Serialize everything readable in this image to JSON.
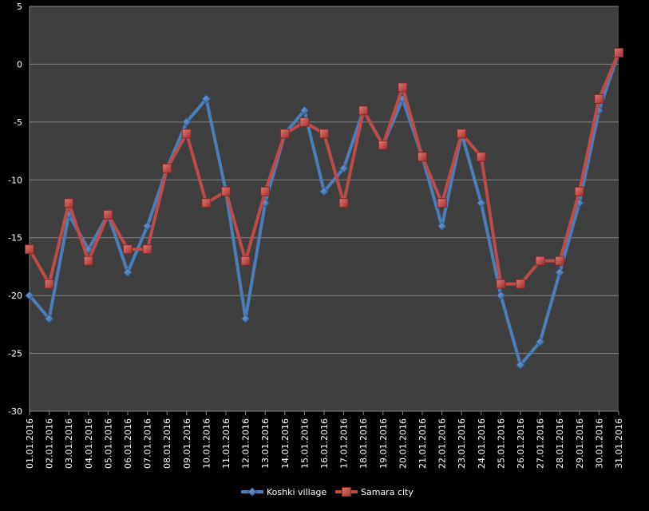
{
  "chart_data": {
    "type": "line",
    "title": "",
    "xlabel": "",
    "ylabel": "",
    "ylim": [
      -30,
      5
    ],
    "y_ticks": [
      "5",
      "0",
      "-5",
      "-10",
      "-15",
      "-20",
      "-25",
      "-30"
    ],
    "grid": true,
    "legend_position": "bottom",
    "categories": [
      "01.01.2016",
      "02.01.2016",
      "03.01.2016",
      "04.01.2016",
      "05.01.2016",
      "06.01.2016",
      "07.01.2016",
      "08.01.2016",
      "09.01.2016",
      "10.01.2016",
      "11.01.2016",
      "12.01.2016",
      "13.01.2016",
      "14.01.2016",
      "15.01.2016",
      "16.01.2016",
      "17.01.2016",
      "18.01.2016",
      "19.01.2016",
      "20.01.2016",
      "21.01.2016",
      "22.01.2016",
      "23.01.2016",
      "24.01.2016",
      "25.01.2016",
      "26.01.2016",
      "27.01.2016",
      "28.01.2016",
      "29.01.2016",
      "30.01.2016",
      "31.01.2016"
    ],
    "series": [
      {
        "name": "Koshki village",
        "color": "#4a7ebb",
        "marker": "diamond",
        "values": [
          -20,
          -22,
          -13,
          -16,
          -13,
          -18,
          -14,
          -9,
          -5,
          -3,
          -11,
          -22,
          -12,
          -6,
          -4,
          -11,
          -9,
          -4,
          -7,
          -3,
          -8,
          -14,
          -6,
          -12,
          -20,
          -26,
          -24,
          -18,
          -12,
          -4,
          1
        ]
      },
      {
        "name": "Samara city",
        "color": "#be4b48",
        "marker": "square",
        "values": [
          -16,
          -19,
          -12,
          -17,
          -13,
          -16,
          -16,
          -9,
          -6,
          -12,
          -11,
          -17,
          -11,
          -6,
          -5,
          -6,
          -12,
          -4,
          -7,
          -2,
          -8,
          -12,
          -6,
          -8,
          -19,
          -19,
          -17,
          -17,
          -11,
          -3,
          1
        ]
      }
    ]
  },
  "colors": {
    "background": "#000000",
    "plot_area": "#3f3f3f",
    "gridline": "#868686",
    "text": "#ffffff"
  }
}
